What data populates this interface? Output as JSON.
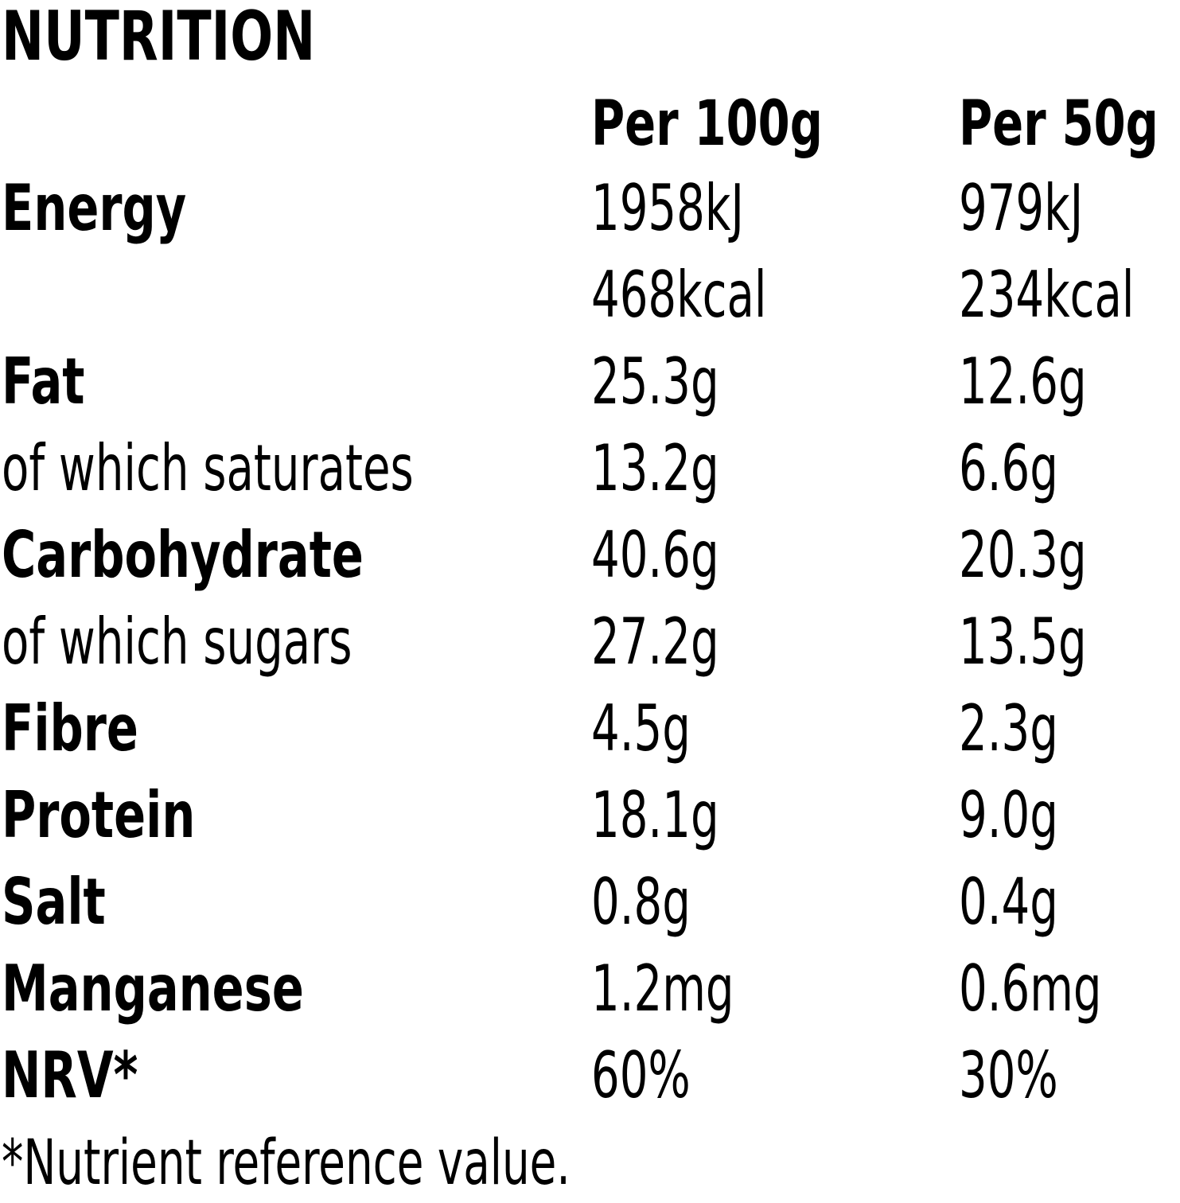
{
  "title": "NUTRITION",
  "columns": {
    "per100": "Per 100g",
    "per50": "Per 50g"
  },
  "rows": [
    {
      "label": "Energy",
      "bold": true,
      "per100": "1958kJ",
      "per50": "979kJ"
    },
    {
      "label": "",
      "bold": false,
      "per100": "468kcal",
      "per50": "234kcal"
    },
    {
      "label": "Fat",
      "bold": true,
      "per100": "25.3g",
      "per50": "12.6g"
    },
    {
      "label": "of which saturates",
      "bold": false,
      "per100": "13.2g",
      "per50": "6.6g"
    },
    {
      "label": "Carbohydrate",
      "bold": true,
      "per100": "40.6g",
      "per50": "20.3g"
    },
    {
      "label": "of which sugars",
      "bold": false,
      "per100": "27.2g",
      "per50": "13.5g"
    },
    {
      "label": "Fibre",
      "bold": true,
      "per100": "4.5g",
      "per50": "2.3g"
    },
    {
      "label": "Protein",
      "bold": true,
      "per100": "18.1g",
      "per50": "9.0g"
    },
    {
      "label": "Salt",
      "bold": true,
      "per100": "0.8g",
      "per50": "0.4g"
    },
    {
      "label": "Manganese",
      "bold": true,
      "per100": "1.2mg",
      "per50": "0.6mg"
    },
    {
      "label": "NRV*",
      "bold": true,
      "per100": "60%",
      "per50": "30%"
    }
  ],
  "footnote": "*Nutrient reference value."
}
